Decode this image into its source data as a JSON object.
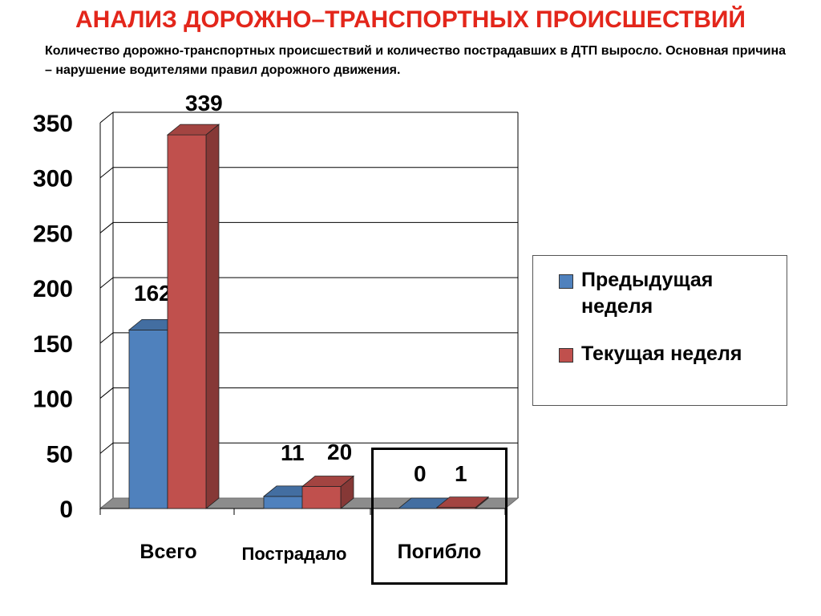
{
  "header": {
    "title": "АНАЛИЗ ДОРОЖНО–ТРАНСПОРТНЫХ ПРОИСШЕСТВИЙ",
    "subtitle": "Количество дорожно-транспортных происшествий и количество пострадавших в ДТП выросло. Основная причина – нарушение водителями правил дорожного движения."
  },
  "chart_data": {
    "type": "bar",
    "categories": [
      "Всего",
      "Пострадало",
      "Погибло"
    ],
    "series": [
      {
        "name": "Предыдущая неделя",
        "values": [
          162,
          11,
          0
        ],
        "color": "#4f81bd"
      },
      {
        "name": "Текущая неделя",
        "values": [
          339,
          20,
          1
        ],
        "color": "#c0504d"
      }
    ],
    "data_labels": [
      [
        "162",
        "11",
        "0"
      ],
      [
        "339",
        "20",
        "1"
      ]
    ],
    "yticks": [
      "0",
      "50",
      "100",
      "150",
      "200",
      "250",
      "300",
      "350"
    ],
    "ylim": [
      0,
      350
    ],
    "grid": true,
    "legend_position": "right",
    "title": "",
    "xlabel": "",
    "ylabel": "",
    "highlighted_category": "Погибло"
  },
  "legend": {
    "items": [
      {
        "label_line1": "Предыдущая",
        "label_line2": "неделя",
        "color": "#4f81bd"
      },
      {
        "label_line1": "Текущая неделя",
        "label_line2": "",
        "color": "#c0504d"
      }
    ]
  }
}
